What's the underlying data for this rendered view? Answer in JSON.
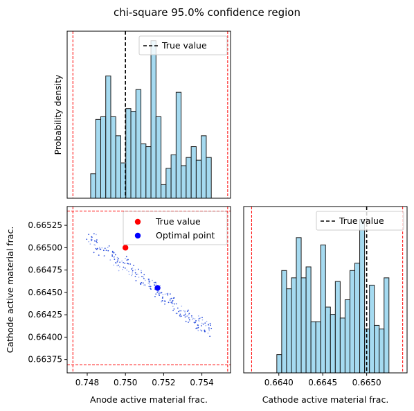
{
  "figure": {
    "title": "chi-square 95.0% confidence region"
  },
  "chart_data": [
    {
      "panel": "top-left",
      "type": "histogram",
      "ylabel": "Probability density",
      "xlim": [
        0.74695,
        0.7555
      ],
      "bins": {
        "start": 0.74818,
        "width": 0.000263,
        "heights": [
          0.9,
          2.9,
          3.0,
          4.5,
          3.0,
          2.3,
          1.3,
          3.3,
          3.2,
          4.0,
          2.0,
          1.9,
          5.8,
          3.0,
          0.5,
          1.1,
          1.6,
          3.9,
          1.2,
          1.5,
          1.9,
          1.4,
          2.3,
          1.5
        ]
      },
      "ylim": [
        0,
        6.15
      ],
      "reference_lines": [
        {
          "name": "True value",
          "x": 0.75,
          "style": "black dashed"
        },
        {
          "name": "confidence bound low",
          "x": 0.74725,
          "style": "red dashed"
        },
        {
          "name": "confidence bound high",
          "x": 0.75535,
          "style": "red dashed"
        }
      ],
      "legend": [
        {
          "label": "True value",
          "style": "black dashed line"
        }
      ],
      "legend_position": "upper right"
    },
    {
      "panel": "bottom-left",
      "type": "scatter",
      "xlabel": "Anode active material frac.",
      "ylabel": "Cathode active material frac.",
      "xlim": [
        0.74695,
        0.7555
      ],
      "ylim": [
        0.6636,
        0.66546
      ],
      "xticks": [
        "0.748",
        "0.750",
        "0.752",
        "0.754"
      ],
      "xtick_values": [
        0.748,
        0.75,
        0.752,
        0.754
      ],
      "yticks": [
        "0.66375",
        "0.66400",
        "0.66425",
        "0.66450",
        "0.66475",
        "0.66500",
        "0.66525"
      ],
      "ytick_values": [
        0.66375,
        0.664,
        0.66425,
        0.6645,
        0.66475,
        0.665,
        0.66525
      ],
      "sample_cloud": {
        "description": "samples",
        "x_start": 0.7481,
        "x_end": 0.7545,
        "y_start": 0.6651,
        "y_end": 0.66405,
        "count": 240
      },
      "points": [
        {
          "name": "True value",
          "x": 0.75,
          "y": 0.665,
          "color": "#ff0000"
        },
        {
          "name": "Optimal point",
          "x": 0.75168,
          "y": 0.66455,
          "color": "#0000ff"
        }
      ],
      "reference_lines": [
        {
          "orientation": "vertical",
          "x": 0.74725,
          "style": "red dashed"
        },
        {
          "orientation": "vertical",
          "x": 0.75535,
          "style": "red dashed"
        },
        {
          "orientation": "horizontal",
          "y": 0.66369,
          "style": "red dashed"
        },
        {
          "orientation": "horizontal",
          "y": 0.66541,
          "style": "red dashed"
        }
      ],
      "legend": [
        {
          "label": "True value",
          "color": "#ff0000"
        },
        {
          "label": "Optimal point",
          "color": "#0000ff"
        }
      ],
      "legend_position": "upper right"
    },
    {
      "panel": "bottom-right",
      "type": "histogram",
      "xlabel": "Cathode active material frac.",
      "xlim": [
        0.6636,
        0.66546
      ],
      "xticks": [
        "0.6640",
        "0.6645",
        "0.6650"
      ],
      "xtick_values": [
        0.664,
        0.6645,
        0.665
      ],
      "bins": {
        "start": 0.663977,
        "width": 5.55e-05,
        "heights": [
          0.5,
          2.8,
          2.3,
          2.6,
          3.7,
          2.6,
          2.9,
          1.4,
          1.4,
          3.5,
          1.8,
          1.6,
          2.5,
          1.5,
          2.0,
          2.8,
          3.0,
          4.2,
          1.2,
          2.4,
          1.3,
          1.2,
          2.6
        ]
      },
      "ylim": [
        0,
        4.55
      ],
      "reference_lines": [
        {
          "name": "True value",
          "x": 0.665,
          "style": "black dashed"
        },
        {
          "name": "confidence bound low",
          "x": 0.66369,
          "style": "red dashed"
        },
        {
          "name": "confidence bound high",
          "x": 0.66541,
          "style": "red dashed"
        }
      ],
      "legend": [
        {
          "label": "True value",
          "style": "black dashed line"
        }
      ],
      "legend_position": "upper right"
    }
  ]
}
